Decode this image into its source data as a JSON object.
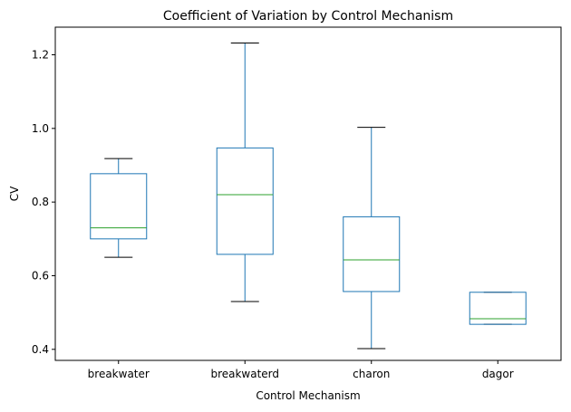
{
  "chart_data": {
    "type": "box",
    "title": "Coefficient of Variation by Control Mechanism",
    "xlabel": "Control Mechanism",
    "ylabel": "CV",
    "ylim": [
      0.37,
      1.275
    ],
    "yticks": [
      0.4,
      0.6,
      0.8,
      1.0,
      1.2
    ],
    "ytick_labels": [
      "0.4",
      "0.6",
      "0.8",
      "1.0",
      "1.2"
    ],
    "grid": false,
    "categories": [
      "breakwater",
      "breakwaterd",
      "charon",
      "dagor"
    ],
    "boxes": [
      {
        "category": "breakwater",
        "whisker_low": 0.65,
        "q1": 0.7,
        "median": 0.73,
        "q3": 0.877,
        "whisker_high": 0.918
      },
      {
        "category": "breakwaterd",
        "whisker_low": 0.53,
        "q1": 0.658,
        "median": 0.82,
        "q3": 0.947,
        "whisker_high": 1.232
      },
      {
        "category": "charon",
        "whisker_low": 0.402,
        "q1": 0.557,
        "median": 0.643,
        "q3": 0.76,
        "whisker_high": 1.003
      },
      {
        "category": "dagor",
        "whisker_low": 0.468,
        "q1": 0.468,
        "median": 0.483,
        "q3": 0.555,
        "whisker_high": 0.555
      }
    ],
    "colors": {
      "box": "#1f77b4",
      "median": "#2ca02c",
      "whisker": "#1f77b4",
      "cap": "#000000",
      "axis": "#000000"
    }
  }
}
